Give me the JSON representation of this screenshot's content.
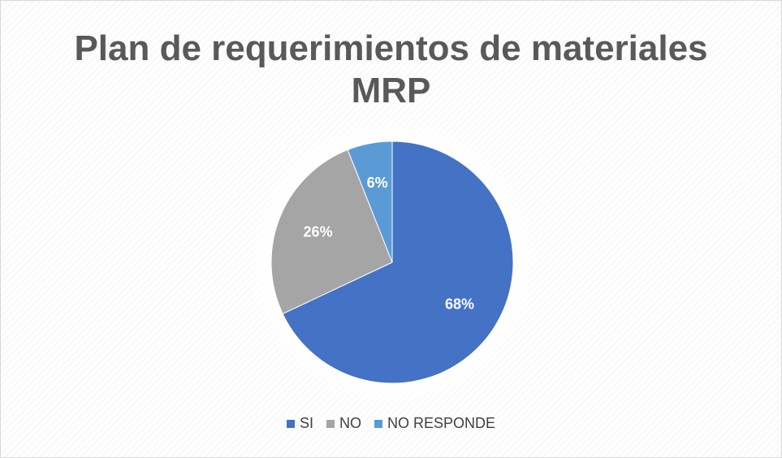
{
  "chart_data": {
    "type": "pie",
    "title": "Plan de requerimientos de materiales MRP",
    "categories": [
      "SI",
      "NO",
      "NO RESPONDE"
    ],
    "values": [
      68,
      26,
      6
    ],
    "value_labels": [
      "68%",
      "26%",
      "6%"
    ],
    "colors": [
      "#4472c4",
      "#a5a5a5",
      "#5b9bd5"
    ],
    "legend": "bottom"
  }
}
